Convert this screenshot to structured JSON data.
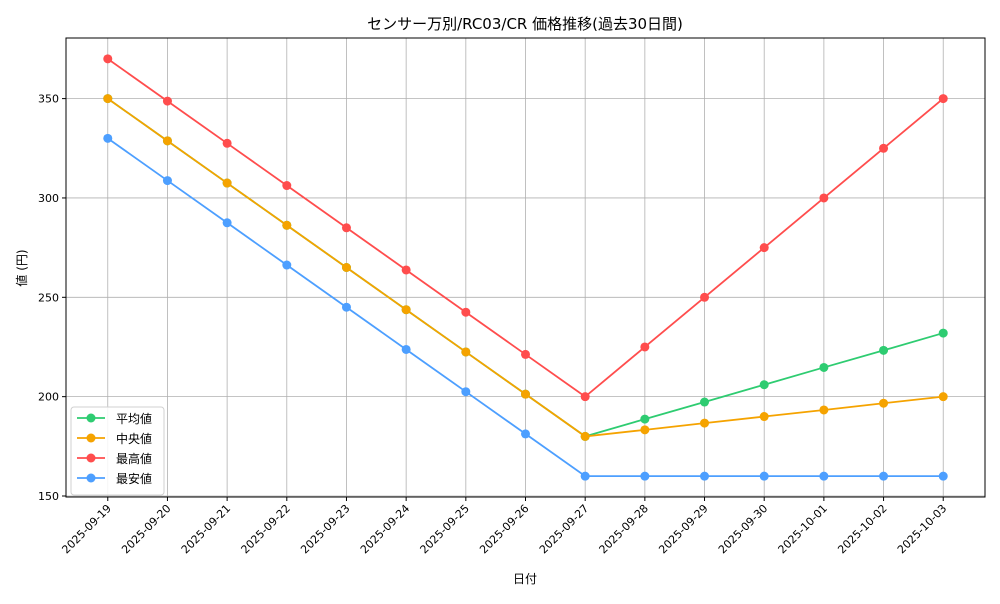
{
  "chart_data": {
    "type": "line",
    "title": "センサー万別/RC03/CR 価格推移(過去30日間)",
    "xlabel": "日付",
    "ylabel": "値 (円)",
    "ylim": [
      149.5,
      380.5
    ],
    "yticks": [
      150,
      200,
      250,
      300,
      350
    ],
    "grid": true,
    "legend_position": "lower-left",
    "categories": [
      "2025-09-19",
      "2025-09-20",
      "2025-09-21",
      "2025-09-22",
      "2025-09-23",
      "2025-09-24",
      "2025-09-25",
      "2025-09-26",
      "2025-09-27",
      "2025-09-28",
      "2025-09-29",
      "2025-09-30",
      "2025-10-01",
      "2025-10-02",
      "2025-10-03"
    ],
    "series": [
      {
        "name": "平均値",
        "color": "#2ecc71",
        "values": [
          350,
          328.75,
          307.5,
          286.25,
          265,
          243.75,
          222.5,
          201.25,
          180,
          188.7,
          197.3,
          206,
          214.7,
          223.3,
          232
        ]
      },
      {
        "name": "中央値",
        "color": "#f5a300",
        "values": [
          350,
          328.75,
          307.5,
          286.25,
          265,
          243.75,
          222.5,
          201.25,
          180,
          183.3,
          186.7,
          190,
          193.3,
          196.7,
          200
        ]
      },
      {
        "name": "最高値",
        "color": "#ff4d4d",
        "values": [
          370,
          348.75,
          327.5,
          306.25,
          285,
          263.75,
          242.5,
          221.25,
          200,
          225,
          250,
          275,
          300,
          325,
          350
        ]
      },
      {
        "name": "最安値",
        "color": "#4d9fff",
        "values": [
          330,
          308.75,
          287.5,
          266.25,
          245,
          223.75,
          202.5,
          181.25,
          160,
          160,
          160,
          160,
          160,
          160,
          160
        ]
      }
    ]
  }
}
